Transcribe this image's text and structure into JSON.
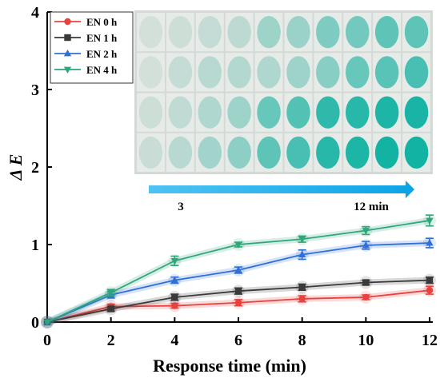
{
  "chart_data": {
    "type": "line",
    "title": "",
    "xlabel": "Response time (min)",
    "ylabel": "Δ E",
    "xlim": [
      0,
      12
    ],
    "ylim": [
      0,
      4
    ],
    "xticks": [
      0,
      2,
      4,
      6,
      8,
      10,
      12
    ],
    "yticks": [
      0,
      1,
      2,
      3,
      4
    ],
    "grid": false,
    "legend_position": "top-left",
    "x": [
      0,
      2,
      4,
      6,
      8,
      10,
      12
    ],
    "series": [
      {
        "name": "EN 0 h",
        "color": "#e8423f",
        "marker": "circle",
        "values": [
          0,
          0.2,
          0.21,
          0.25,
          0.3,
          0.32,
          0.41
        ],
        "errors": [
          0,
          0.03,
          0.03,
          0.04,
          0.04,
          0.03,
          0.05
        ]
      },
      {
        "name": "EN 1 h",
        "color": "#3a3a3a",
        "marker": "square",
        "values": [
          0,
          0.17,
          0.32,
          0.4,
          0.45,
          0.51,
          0.54
        ],
        "errors": [
          0,
          0.03,
          0.04,
          0.04,
          0.04,
          0.03,
          0.04
        ]
      },
      {
        "name": "EN 2 h",
        "color": "#2f6fd6",
        "marker": "triangle-up",
        "values": [
          0,
          0.35,
          0.54,
          0.67,
          0.87,
          0.99,
          1.02
        ],
        "errors": [
          0,
          0.04,
          0.04,
          0.04,
          0.06,
          0.05,
          0.06
        ]
      },
      {
        "name": "EN 4 h",
        "color": "#2ea67a",
        "marker": "triangle-down",
        "values": [
          0,
          0.38,
          0.79,
          1.0,
          1.07,
          1.18,
          1.31
        ],
        "errors": [
          0,
          0.04,
          0.06,
          0.03,
          0.04,
          0.05,
          0.07
        ]
      }
    ],
    "inset_photo": {
      "rows": 4,
      "columns": 10,
      "tint_levels": [
        [
          0.05,
          0.08,
          0.12,
          0.16,
          0.3,
          0.32,
          0.45,
          0.5,
          0.6,
          0.6
        ],
        [
          0.05,
          0.12,
          0.18,
          0.2,
          0.22,
          0.3,
          0.4,
          0.55,
          0.62,
          0.7
        ],
        [
          0.08,
          0.14,
          0.22,
          0.3,
          0.55,
          0.65,
          0.82,
          0.85,
          0.9,
          0.92
        ],
        [
          0.1,
          0.18,
          0.28,
          0.38,
          0.6,
          0.7,
          0.85,
          0.9,
          0.95,
          0.95
        ]
      ]
    },
    "annotations": {
      "arrow_start_label": "3",
      "arrow_end_label": "12 min"
    }
  }
}
